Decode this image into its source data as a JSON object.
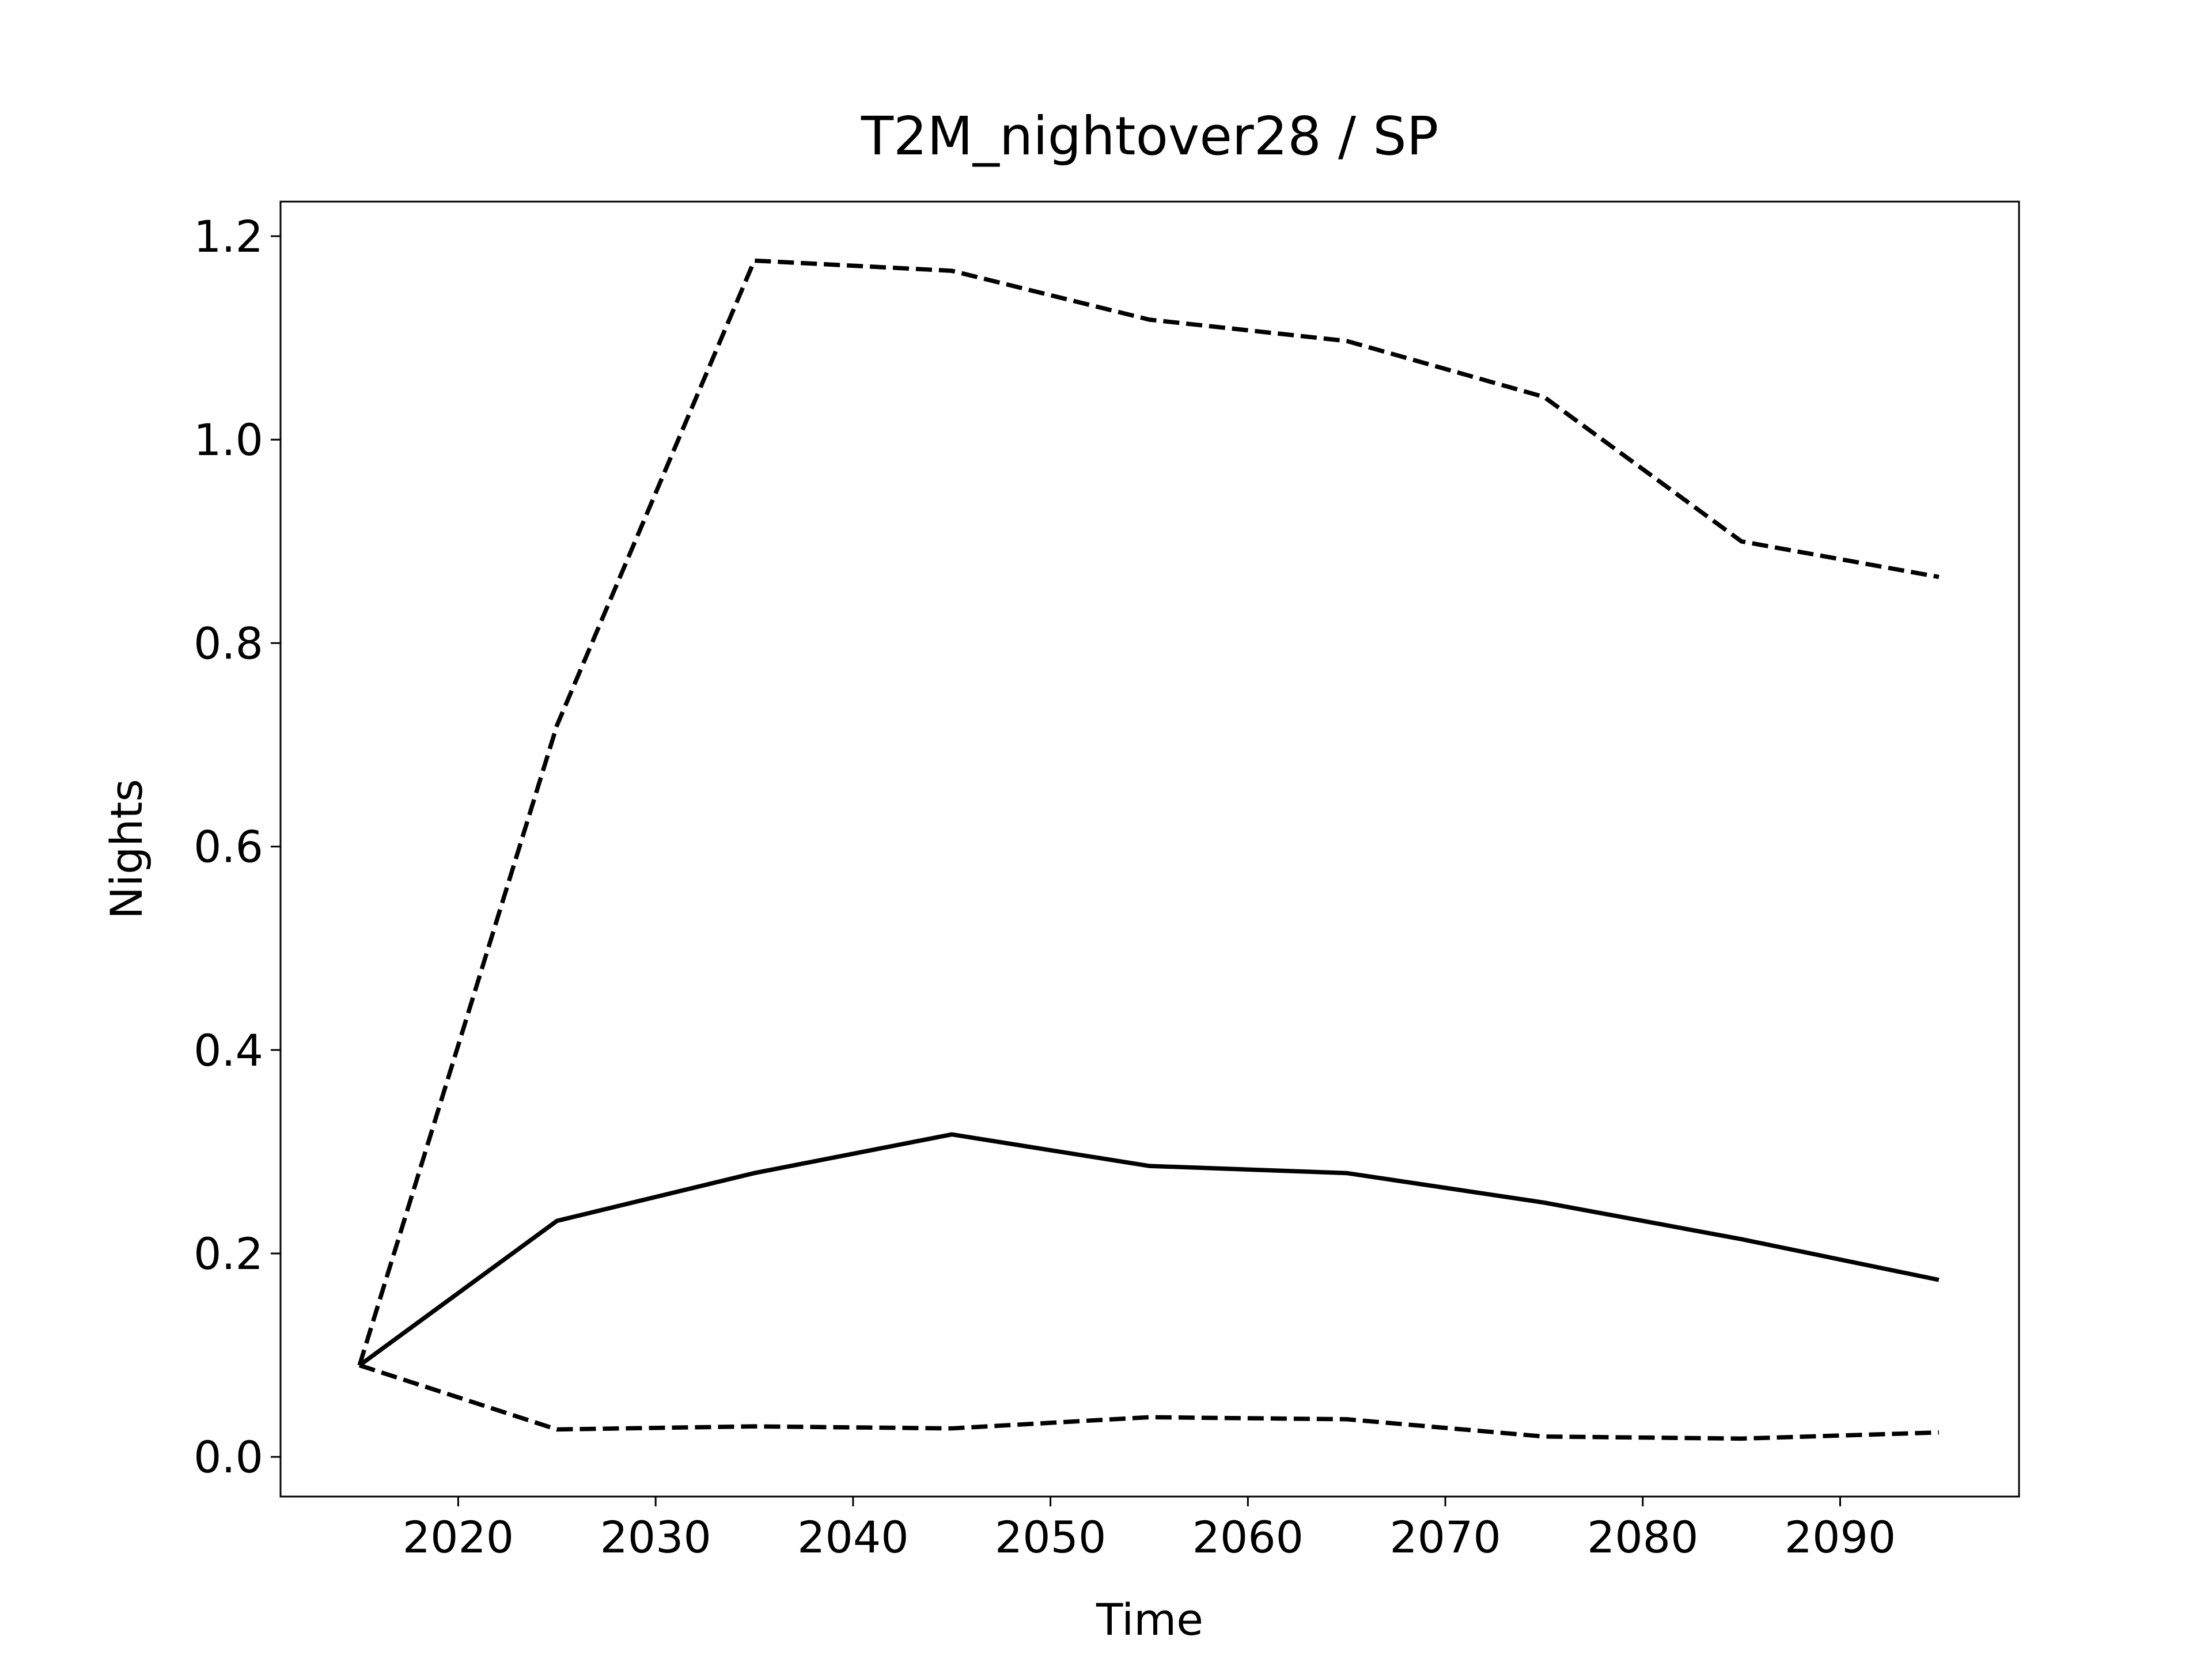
{
  "chart_data": {
    "type": "line",
    "title": "T2M_nightover28 / SP",
    "xlabel": "Time",
    "ylabel": "Nights",
    "x": [
      2015,
      2025,
      2035,
      2045,
      2055,
      2065,
      2075,
      2085,
      2095
    ],
    "series": [
      {
        "color": "#000000",
        "linestyle": "dashed",
        "values": [
          0.09,
          0.719,
          1.176,
          1.166,
          1.118,
          1.097,
          1.042,
          0.9,
          0.865
        ]
      },
      {
        "color": "#000000",
        "linestyle": "solid",
        "values": [
          0.09,
          0.232,
          0.279,
          0.317,
          0.286,
          0.279,
          0.25,
          0.214,
          0.174
        ]
      },
      {
        "color": "#000000",
        "linestyle": "dashed",
        "values": [
          0.09,
          0.027,
          0.03,
          0.028,
          0.039,
          0.037,
          0.02,
          0.018,
          0.024
        ]
      }
    ],
    "xlim": [
      2011.0,
      2099.06
    ],
    "ylim": [
      -0.039,
      1.234
    ],
    "xticks": [
      2020,
      2030,
      2040,
      2050,
      2060,
      2070,
      2080,
      2090
    ],
    "yticks": [
      {
        "value": 0,
        "label": "0.0"
      },
      0.2,
      0.4,
      0.6,
      0.8,
      {
        "value": 1,
        "label": "1.0"
      },
      1.2
    ],
    "grid": false
  }
}
